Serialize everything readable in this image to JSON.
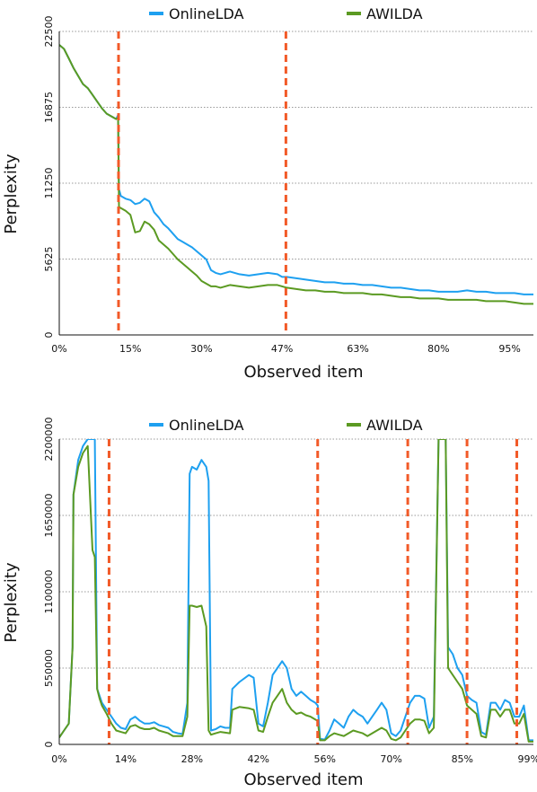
{
  "chart_data": [
    {
      "type": "line",
      "title": "",
      "xlabel": "Observed item",
      "ylabel": "Perplexity",
      "x_tick_labels": [
        "0%",
        "15%",
        "30%",
        "47%",
        "63%",
        "80%",
        "95%"
      ],
      "x_ticks": [
        0,
        15,
        30,
        47,
        63,
        80,
        95
      ],
      "y_ticks": [
        0,
        5625,
        11250,
        16875,
        22500
      ],
      "y_tick_labels": [
        "0",
        "5625",
        "11250",
        "16875",
        "22500"
      ],
      "xlim": [
        0,
        100
      ],
      "ylim": [
        0,
        22500
      ],
      "grid": "horizontal dotted",
      "legend": "top",
      "drift_markers": [
        12.5,
        47.8
      ],
      "series": [
        {
          "name": "OnlineLDA",
          "color": "#1ea0f0",
          "x": [
            0,
            1,
            2,
            3,
            4,
            5,
            6,
            7,
            8,
            9,
            10,
            11,
            12,
            12.4,
            12.6,
            13,
            14,
            15,
            16,
            17,
            18,
            19,
            20,
            21,
            22,
            23,
            24,
            25,
            26,
            27,
            28,
            29,
            30,
            31,
            32,
            33,
            34,
            35,
            36,
            38,
            40,
            42,
            44,
            46,
            47,
            48,
            50,
            52,
            54,
            56,
            58,
            60,
            62,
            64,
            66,
            68,
            70,
            72,
            74,
            76,
            78,
            80,
            82,
            84,
            86,
            88,
            90,
            92,
            94,
            96,
            98,
            100
          ],
          "values": [
            21500,
            21200,
            20500,
            19800,
            19200,
            18600,
            18300,
            17800,
            17300,
            16800,
            16400,
            16200,
            16000,
            16300,
            10800,
            10300,
            10100,
            10000,
            9700,
            9800,
            10100,
            9900,
            9100,
            8700,
            8200,
            7900,
            7500,
            7100,
            6900,
            6700,
            6500,
            6200,
            5900,
            5600,
            4800,
            4600,
            4500,
            4600,
            4700,
            4500,
            4400,
            4500,
            4600,
            4500,
            4300,
            4300,
            4200,
            4100,
            4000,
            3900,
            3900,
            3800,
            3800,
            3700,
            3700,
            3600,
            3500,
            3500,
            3400,
            3300,
            3300,
            3200,
            3200,
            3200,
            3300,
            3200,
            3200,
            3100,
            3100,
            3100,
            3000,
            3000
          ]
        },
        {
          "name": "AWILDA",
          "color": "#5b9a22",
          "x": [
            0,
            1,
            2,
            3,
            4,
            5,
            6,
            7,
            8,
            9,
            10,
            11,
            12,
            12.4,
            12.6,
            13,
            14,
            15,
            16,
            17,
            18,
            19,
            20,
            21,
            22,
            23,
            24,
            25,
            26,
            27,
            28,
            29,
            30,
            31,
            32,
            33,
            34,
            35,
            36,
            38,
            40,
            42,
            44,
            46,
            47,
            48,
            50,
            52,
            54,
            56,
            58,
            60,
            62,
            64,
            66,
            68,
            70,
            72,
            74,
            76,
            78,
            80,
            82,
            84,
            86,
            88,
            90,
            92,
            94,
            96,
            98,
            100
          ],
          "values": [
            21500,
            21200,
            20500,
            19800,
            19200,
            18600,
            18300,
            17800,
            17300,
            16800,
            16400,
            16200,
            16000,
            16100,
            9500,
            9400,
            9200,
            8900,
            7600,
            7700,
            8400,
            8200,
            7800,
            7000,
            6700,
            6400,
            6000,
            5600,
            5300,
            5000,
            4700,
            4400,
            4000,
            3800,
            3600,
            3600,
            3500,
            3600,
            3700,
            3600,
            3500,
            3600,
            3700,
            3700,
            3600,
            3500,
            3400,
            3300,
            3300,
            3200,
            3200,
            3100,
            3100,
            3100,
            3000,
            3000,
            2900,
            2800,
            2800,
            2700,
            2700,
            2700,
            2600,
            2600,
            2600,
            2600,
            2500,
            2500,
            2500,
            2400,
            2300,
            2300
          ]
        }
      ]
    },
    {
      "type": "line",
      "title": "",
      "xlabel": "Observed item",
      "ylabel": "Perplexity",
      "x_tick_labels": [
        "0%",
        "14%",
        "28%",
        "42%",
        "56%",
        "70%",
        "85%",
        "99%"
      ],
      "x_ticks": [
        0,
        14,
        28,
        42,
        56,
        70,
        85,
        99
      ],
      "y_ticks": [
        0,
        550000,
        1100000,
        1650000,
        2200000
      ],
      "y_tick_labels": [
        "0",
        "550000",
        "1100000",
        "1650000",
        "2200000"
      ],
      "xlim": [
        0,
        100
      ],
      "ylim": [
        0,
        2200000
      ],
      "grid": "horizontal dotted",
      "legend": "top",
      "drift_markers": [
        10.5,
        54.5,
        73.5,
        86.0,
        96.5
      ],
      "series": [
        {
          "name": "OnlineLDA",
          "color": "#1ea0f0",
          "x": [
            0,
            1,
            2,
            2.8,
            3,
            4,
            5,
            6,
            7,
            7.5,
            8,
            8.5,
            9,
            10,
            11,
            12,
            13,
            14,
            15,
            16,
            17,
            18,
            19,
            20,
            21,
            22,
            23,
            24,
            25,
            26,
            27,
            27.5,
            28,
            29,
            30,
            31,
            31.5,
            32,
            33,
            34,
            35,
            36,
            36.5,
            38,
            40,
            41,
            42,
            43,
            44,
            45,
            46,
            47,
            48,
            49,
            50,
            51,
            52,
            53,
            54,
            54.5,
            55,
            56,
            57,
            58,
            59,
            60,
            61,
            62,
            63,
            64,
            65,
            66,
            67,
            68,
            69,
            70,
            71,
            72,
            73,
            74,
            75,
            76,
            77,
            78,
            79,
            80,
            80.5,
            81,
            81.5,
            82,
            83,
            84,
            85,
            86,
            87,
            88,
            89,
            90,
            91,
            92,
            93,
            94,
            95,
            96,
            97,
            98,
            99,
            100
          ],
          "values": [
            50000,
            100000,
            150000,
            700000,
            1800000,
            2050000,
            2150000,
            2200000,
            2200000,
            2200000,
            400000,
            350000,
            300000,
            250000,
            200000,
            150000,
            120000,
            110000,
            180000,
            200000,
            170000,
            150000,
            150000,
            160000,
            140000,
            130000,
            120000,
            90000,
            80000,
            75000,
            300000,
            1950000,
            2000000,
            1980000,
            2050000,
            2000000,
            1900000,
            100000,
            110000,
            130000,
            120000,
            120000,
            400000,
            450000,
            500000,
            480000,
            150000,
            130000,
            300000,
            500000,
            550000,
            600000,
            550000,
            400000,
            350000,
            380000,
            350000,
            320000,
            300000,
            280000,
            40000,
            35000,
            100000,
            180000,
            150000,
            120000,
            200000,
            250000,
            220000,
            200000,
            150000,
            200000,
            250000,
            300000,
            250000,
            80000,
            60000,
            100000,
            200000,
            300000,
            350000,
            350000,
            330000,
            120000,
            200000,
            2200000,
            2200000,
            2200000,
            2200000,
            700000,
            650000,
            550000,
            500000,
            350000,
            320000,
            300000,
            90000,
            70000,
            300000,
            300000,
            250000,
            320000,
            300000,
            200000,
            200000,
            280000,
            30000,
            30000
          ]
        },
        {
          "name": "AWILDA",
          "color": "#5b9a22",
          "x": [
            0,
            1,
            2,
            2.8,
            3,
            4,
            5,
            6,
            7,
            7.5,
            8,
            8.5,
            9,
            10,
            11,
            12,
            13,
            14,
            15,
            16,
            17,
            18,
            19,
            20,
            21,
            22,
            23,
            24,
            25,
            26,
            27,
            27.5,
            28,
            29,
            30,
            31,
            31.5,
            32,
            33,
            34,
            35,
            36,
            36.5,
            38,
            40,
            41,
            42,
            43,
            44,
            45,
            46,
            47,
            48,
            49,
            50,
            51,
            52,
            53,
            54,
            54.5,
            55,
            56,
            57,
            58,
            59,
            60,
            61,
            62,
            63,
            64,
            65,
            66,
            67,
            68,
            69,
            70,
            71,
            72,
            73,
            74,
            75,
            76,
            77,
            78,
            79,
            80,
            80.5,
            81,
            81.5,
            82,
            83,
            84,
            85,
            86,
            87,
            88,
            89,
            90,
            91,
            92,
            93,
            94,
            95,
            96,
            97,
            98,
            99,
            100
          ],
          "values": [
            50000,
            100000,
            150000,
            700000,
            1800000,
            2000000,
            2100000,
            2150000,
            1400000,
            1350000,
            400000,
            330000,
            280000,
            220000,
            150000,
            100000,
            90000,
            80000,
            130000,
            140000,
            120000,
            110000,
            110000,
            120000,
            100000,
            90000,
            80000,
            60000,
            60000,
            60000,
            200000,
            1000000,
            1000000,
            990000,
            1000000,
            850000,
            100000,
            70000,
            80000,
            90000,
            85000,
            80000,
            250000,
            270000,
            260000,
            250000,
            100000,
            90000,
            200000,
            300000,
            350000,
            400000,
            300000,
            250000,
            220000,
            230000,
            210000,
            200000,
            180000,
            170000,
            30000,
            30000,
            60000,
            80000,
            70000,
            60000,
            80000,
            100000,
            90000,
            80000,
            60000,
            80000,
            100000,
            120000,
            100000,
            40000,
            30000,
            50000,
            100000,
            150000,
            180000,
            180000,
            170000,
            80000,
            120000,
            2200000,
            2200000,
            2200000,
            2200000,
            550000,
            500000,
            450000,
            400000,
            280000,
            250000,
            220000,
            60000,
            50000,
            250000,
            250000,
            200000,
            250000,
            250000,
            150000,
            150000,
            220000,
            20000,
            20000
          ]
        }
      ]
    }
  ]
}
